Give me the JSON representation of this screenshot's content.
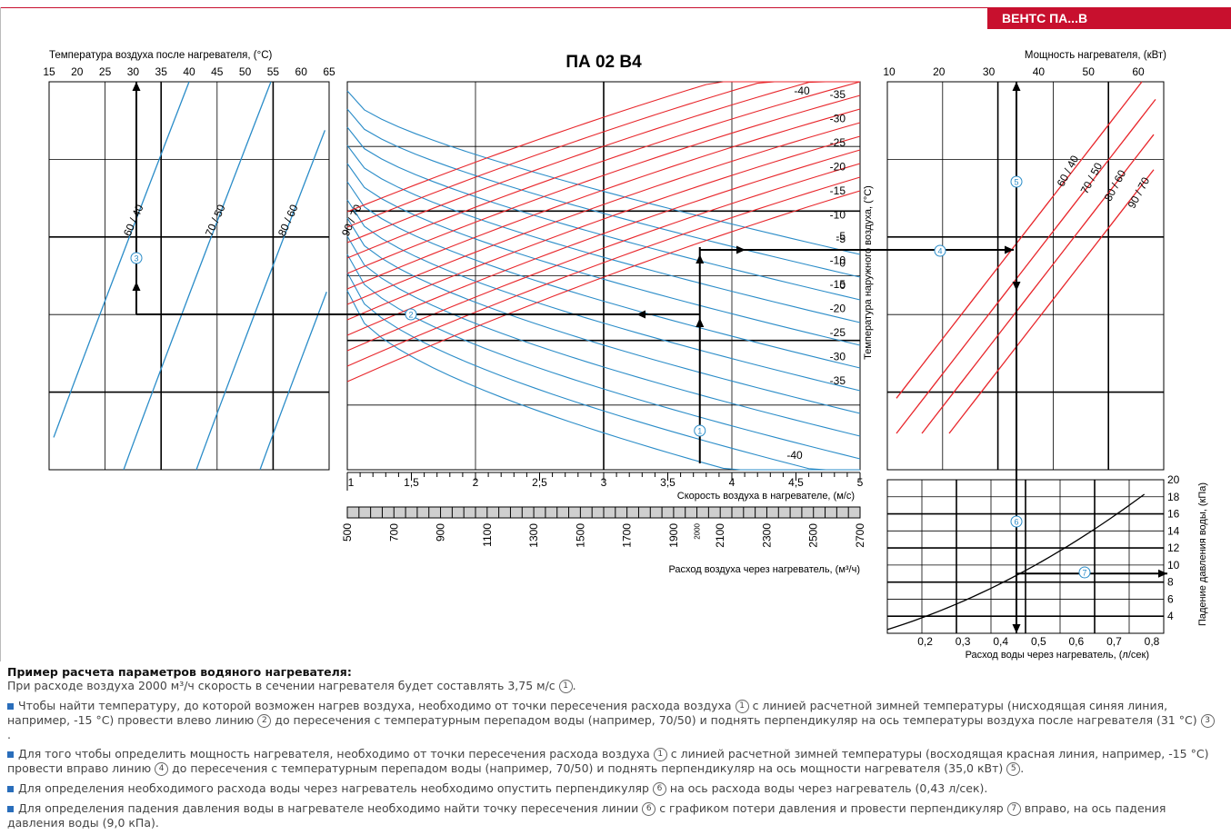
{
  "badge": "ВЕНТС ПА...В",
  "main_title": "ПА 02 В4",
  "colors": {
    "red": "#e8262b",
    "blue": "#2a8cc8",
    "black": "#000000",
    "grey_band": "#cfcfcf"
  },
  "chart_data": [
    {
      "type": "line",
      "name": "left",
      "title": "Температура воздуха после нагревателя, (°С)",
      "x_ticks": [
        15,
        20,
        25,
        30,
        35,
        40,
        45,
        50,
        55,
        60,
        65
      ],
      "series": [
        {
          "name": "60 / 40",
          "label": "60 / 40"
        },
        {
          "name": "70 / 50",
          "label": "70 / 50"
        },
        {
          "name": "80 / 60",
          "label": "80 / 60"
        },
        {
          "name": "90 / 70",
          "label": "90 / 70"
        }
      ],
      "example_value": 31,
      "step_marker": "3"
    },
    {
      "type": "line",
      "name": "center",
      "xlabel": "Скорость воздуха в нагревателе, (м/с)",
      "x_ticks": [
        "1",
        "1,5",
        "2",
        "2,5",
        "3",
        "3,5",
        "4",
        "4,5",
        "5"
      ],
      "xlim": [
        1,
        5
      ],
      "flow_label": "Расход воздуха через нагреватель, (м³/ч)",
      "flow_ticks": [
        "500",
        "700",
        "900",
        "1100",
        "1300",
        "1500",
        "1700",
        "1900",
        "2100",
        "2300",
        "2500",
        "2700"
      ],
      "flow_marker": "2000",
      "ylabel": "Температура наружного воздуха, (°С)",
      "upper_ticks": [
        "-35",
        "-30",
        "-25",
        "-20",
        "-15",
        "-10",
        "-5",
        "0"
      ],
      "lower_ticks": [
        "-5",
        "-10",
        "-15",
        "-20",
        "-25",
        "-30",
        "-35"
      ],
      "zero_lower": "0",
      "label_m40_top": "-40",
      "label_m40_bottom": "-40",
      "example_speed": 3.75,
      "example_flow": 2000,
      "markers": {
        "m1": "1",
        "m2": "2"
      }
    },
    {
      "type": "line",
      "name": "right",
      "title": "Мощность нагревателя, (кВт)",
      "x_ticks": [
        10,
        20,
        30,
        40,
        50,
        60
      ],
      "series": [
        {
          "name": "60 / 40",
          "label": "60 / 40"
        },
        {
          "name": "70 / 50",
          "label": "70 / 50"
        },
        {
          "name": "80 / 60",
          "label": "80 / 60"
        },
        {
          "name": "90 / 70",
          "label": "90 / 70"
        }
      ],
      "example_value": 35.0,
      "markers": {
        "m4": "4",
        "m5": "5"
      }
    },
    {
      "type": "line",
      "name": "pressure",
      "xlabel": "Расход воды через нагреватель, (л/сек)",
      "x_ticks": [
        "0,2",
        "0,3",
        "0,4",
        "0,5",
        "0,6",
        "0,7",
        "0,8"
      ],
      "xlim": [
        0.1,
        0.8
      ],
      "ylabel": "Падение давления воды, (кПа)",
      "y_ticks": [
        "4",
        "6",
        "8",
        "10",
        "12",
        "14",
        "16",
        "18",
        "20"
      ],
      "ylim": [
        2,
        20
      ],
      "example_flow": 0.43,
      "example_pressure": 9.0,
      "markers": {
        "m6": "6",
        "m7": "7"
      }
    }
  ],
  "text": {
    "heading": "Пример расчета параметров водяного нагревателя:",
    "p1_a": "При расходе воздуха 2000 м³/ч скорость в сечении нагревателя будет составлять 3,75 м/с",
    "p2_a": "Чтобы найти температуру, до которой возможен нагрев воздуха, необходимо от точки пересечения расхода воздуха",
    "p2_b": "с линией расчетной зимней температуры (нисходящая синяя линия, например, -15 °С) провести влево линию",
    "p2_c": "до пересечения с температурным перепадом воды (например, 70/50) и поднять перпендикуляр на ось температуры воздуха после нагревателя (31 °С)",
    "p3_a": "Для того чтобы определить мощность нагревателя, необходимо от точки пересечения расхода воздуха",
    "p3_b": "с линией расчетной зимней температуры (восходящая красная линия, например, -15 °С) провести вправо линию",
    "p3_c": "до пересечения с температурным перепадом воды (например, 70/50) и поднять перпендикуляр на ось мощности нагревателя (35,0 кВт)",
    "p4_a": "Для определения необходимого расхода воды через нагреватель необходимо опустить перпендикуляр",
    "p4_b": "на ось расхода воды через нагреватель (0,43 л/сек).",
    "p5_a": "Для определения падения давления воды в нагревателе необходимо найти точку пересечения линии",
    "p5_b": "с графиком потери давления и провести перпендикуляр",
    "p5_c": "вправо, на ось падения давления воды (9,0 кПа).",
    "c1": "1",
    "c2": "2",
    "c3": "3",
    "c4": "4",
    "c5": "5",
    "c6": "6",
    "c7": "7"
  }
}
